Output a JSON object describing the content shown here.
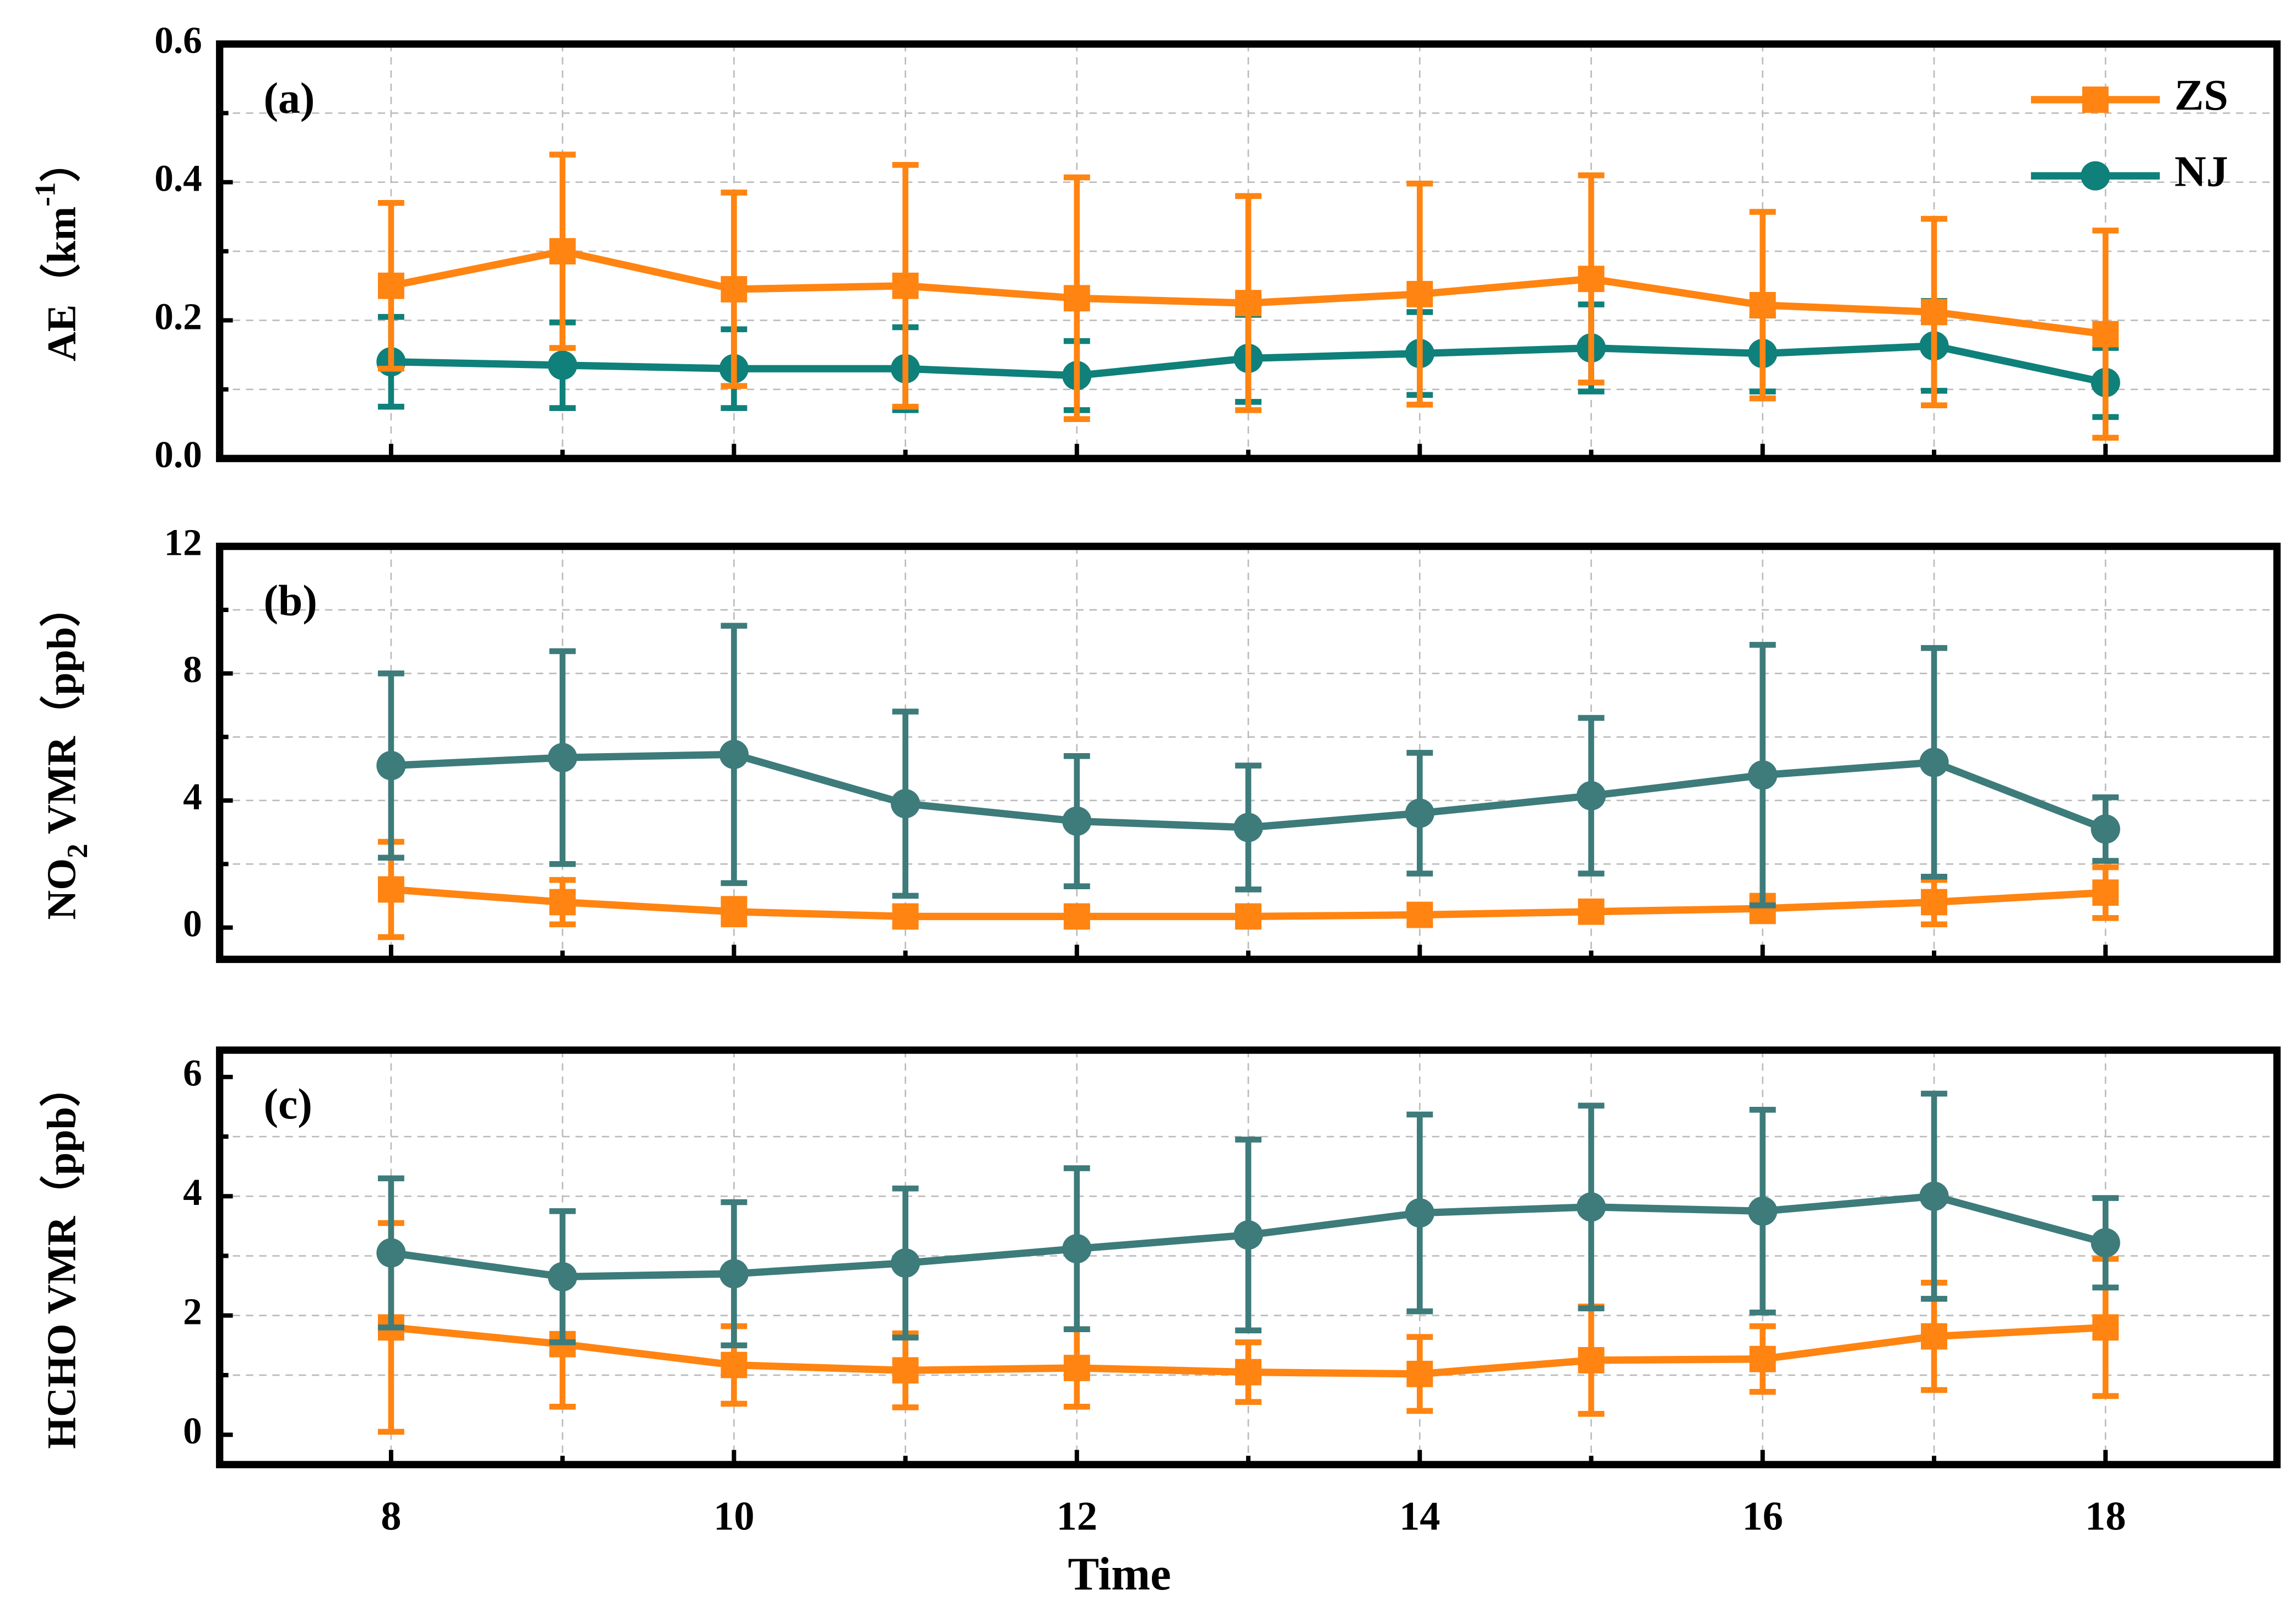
{
  "chart_data": [
    {
      "type": "line",
      "panel_label": "(a)",
      "y_label": [
        {
          "text": "AE（km"
        },
        {
          "text": "-1",
          "shift": "super"
        },
        {
          "text": "）"
        }
      ],
      "x": [
        8,
        9,
        10,
        11,
        12,
        13,
        14,
        15,
        16,
        17,
        18
      ],
      "xlim": [
        7,
        19
      ],
      "xticks": [
        8,
        10,
        12,
        14,
        16,
        18
      ],
      "xtick_labels": false,
      "ylim": [
        0,
        0.6
      ],
      "yticks": [
        {
          "value": 0,
          "label": "0.0"
        },
        0.2,
        0.4,
        0.6
      ],
      "grid": true,
      "legend": "upper right",
      "series": [
        {
          "name": "ZS",
          "color": "#ff8411",
          "marker": "square",
          "values": [
            0.25,
            0.3,
            0.245,
            0.25,
            0.232,
            0.225,
            0.238,
            0.26,
            0.222,
            0.212,
            0.18
          ],
          "errors": [
            0.12,
            0.14,
            0.14,
            0.175,
            0.175,
            0.155,
            0.16,
            0.15,
            0.135,
            0.135,
            0.15
          ]
        },
        {
          "name": "NJ",
          "color": "#0f807a",
          "marker": "circle",
          "values": [
            0.14,
            0.135,
            0.13,
            0.13,
            0.12,
            0.145,
            0.152,
            0.16,
            0.152,
            0.163,
            0.11
          ],
          "errors": [
            0.065,
            0.062,
            0.057,
            0.06,
            0.05,
            0.063,
            0.06,
            0.063,
            0.055,
            0.065,
            0.05
          ]
        }
      ]
    },
    {
      "type": "line",
      "panel_label": "(b)",
      "y_label": [
        {
          "text": "NO"
        },
        {
          "text": "2",
          "shift": "sub"
        },
        {
          "text": " VMR（ppb）"
        }
      ],
      "x": [
        8,
        9,
        10,
        11,
        12,
        13,
        14,
        15,
        16,
        17,
        18
      ],
      "xlim": [
        7,
        19
      ],
      "xticks": [
        8,
        10,
        12,
        14,
        16,
        18
      ],
      "xtick_labels": false,
      "ylim": [
        -1,
        12
      ],
      "yticks": [
        0,
        4,
        8,
        12
      ],
      "grid": true,
      "legend": false,
      "series": [
        {
          "name": "NJ",
          "color": "#3e7b7b",
          "marker": "circle",
          "values": [
            5.1,
            5.35,
            5.45,
            3.9,
            3.35,
            3.15,
            3.6,
            4.15,
            4.8,
            5.2,
            3.1
          ],
          "errors": [
            2.9,
            3.35,
            4.05,
            2.9,
            2.05,
            1.95,
            1.9,
            2.45,
            4.1,
            3.6,
            1.0
          ]
        },
        {
          "name": "ZS",
          "color": "#ff8411",
          "marker": "square",
          "values": [
            1.2,
            0.8,
            0.5,
            0.35,
            0.35,
            0.35,
            0.4,
            0.5,
            0.6,
            0.8,
            1.1
          ],
          "errors": [
            1.5,
            0.7,
            0.4,
            0.3,
            0.3,
            0.3,
            0.3,
            0.3,
            0.4,
            0.7,
            0.8
          ]
        }
      ]
    },
    {
      "type": "line",
      "panel_label": "(c)",
      "y_label": [
        {
          "text": "HCHO VMR（ppb）"
        }
      ],
      "x_label": "Time",
      "x": [
        8,
        9,
        10,
        11,
        12,
        13,
        14,
        15,
        16,
        17,
        18
      ],
      "xlim": [
        7,
        19
      ],
      "xticks": [
        8,
        10,
        12,
        14,
        16,
        18
      ],
      "xtick_labels": true,
      "ylim": [
        -0.5,
        6.45
      ],
      "yticks": [
        0,
        2,
        4,
        6
      ],
      "grid": true,
      "legend": false,
      "series": [
        {
          "name": "NJ",
          "color": "#3e7b7b",
          "marker": "circle",
          "values": [
            3.05,
            2.65,
            2.7,
            2.88,
            3.12,
            3.35,
            3.72,
            3.82,
            3.75,
            4.0,
            3.22
          ],
          "errors": [
            1.25,
            1.1,
            1.2,
            1.25,
            1.35,
            1.6,
            1.65,
            1.7,
            1.7,
            1.72,
            0.75
          ]
        },
        {
          "name": "ZS",
          "color": "#ff8411",
          "marker": "square",
          "values": [
            1.8,
            1.52,
            1.17,
            1.08,
            1.12,
            1.05,
            1.02,
            1.25,
            1.27,
            1.65,
            1.8
          ],
          "errors": [
            1.75,
            1.05,
            0.65,
            0.62,
            0.65,
            0.5,
            0.62,
            0.9,
            0.55,
            0.9,
            1.15
          ]
        }
      ]
    }
  ]
}
